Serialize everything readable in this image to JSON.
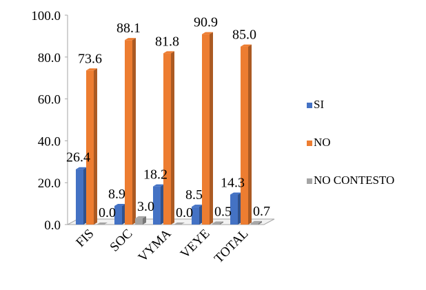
{
  "chart_data": {
    "type": "bar",
    "categories": [
      "FIS",
      "SOC",
      "VYMA",
      "VEYE",
      "TOTAL"
    ],
    "series": [
      {
        "name": "SI",
        "values": [
          26.4,
          8.9,
          18.2,
          8.5,
          14.3
        ]
      },
      {
        "name": "NO",
        "values": [
          73.6,
          88.1,
          81.8,
          90.9,
          85.0
        ]
      },
      {
        "name": "NO CONTESTO",
        "values": [
          0.0,
          3.0,
          0.0,
          0.5,
          0.7
        ]
      }
    ],
    "data_labels": {
      "SI": [
        "26.4",
        "8.9",
        "18.2",
        "8.5",
        "14.3"
      ],
      "NO": [
        "73.6",
        "88.1",
        "81.8",
        "90.9",
        "85.0"
      ],
      "NO CONTESTO": [
        "0.0",
        "3.0",
        "0.0",
        "0.5",
        "0.7"
      ]
    },
    "y_ticks": [
      "0.0",
      "20.0",
      "40.0",
      "60.0",
      "80.0",
      "100.0"
    ],
    "ylim": [
      0,
      100
    ],
    "legend_position": "right",
    "grid": false,
    "style": "3d-clustered-column",
    "colors": {
      "SI": "#4472c4",
      "NO": "#ed7d31",
      "NO CONTESTO": "#a5a5a5"
    }
  }
}
